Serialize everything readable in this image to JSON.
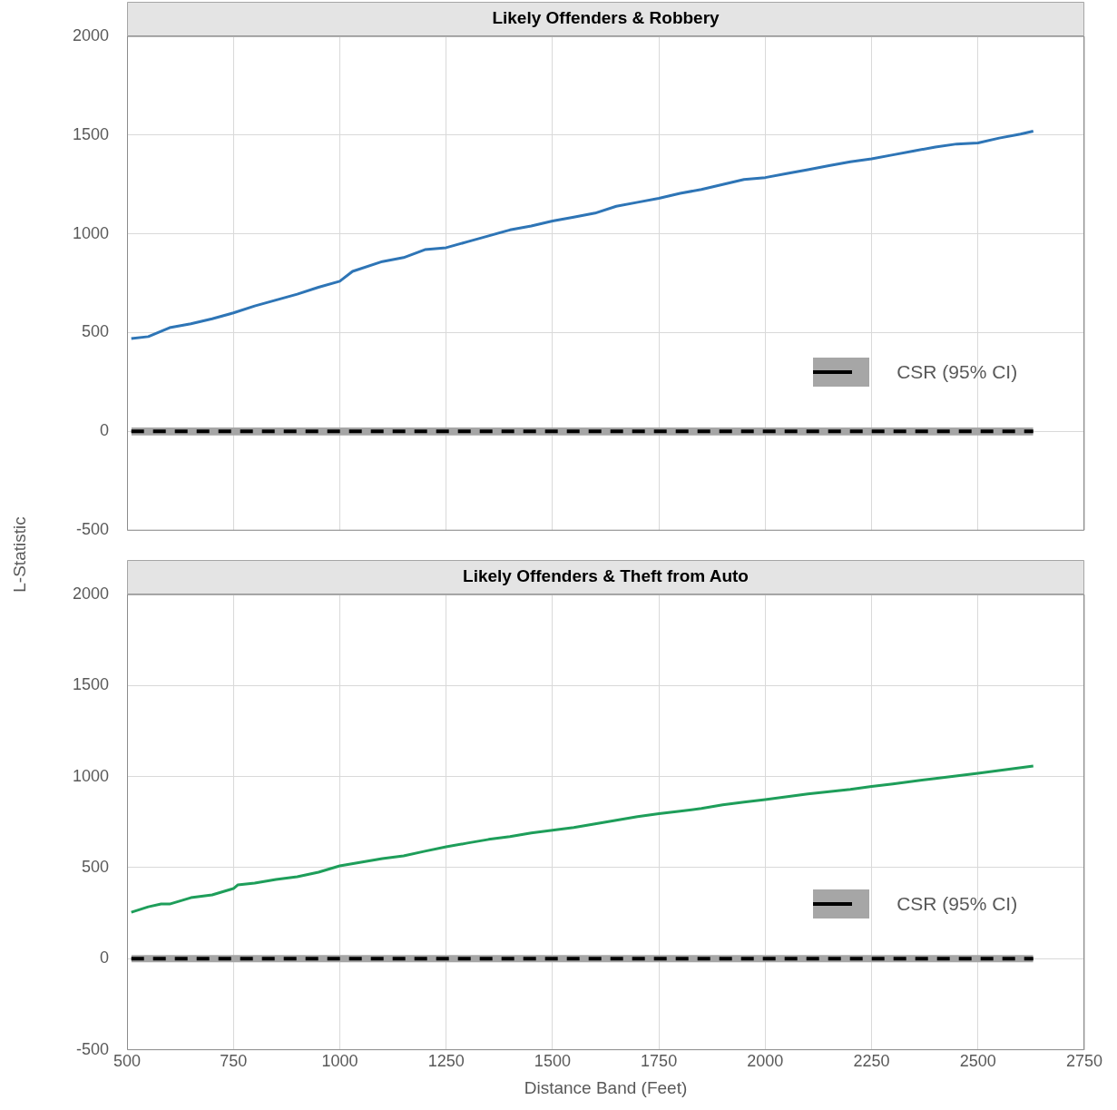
{
  "chart_data": [
    {
      "type": "line",
      "title": "Likely Offenders & Robbery",
      "ylabel": "L-Statistic",
      "x": [
        510,
        550,
        600,
        650,
        700,
        750,
        800,
        850,
        900,
        950,
        1000,
        1030,
        1100,
        1150,
        1200,
        1250,
        1300,
        1350,
        1400,
        1450,
        1500,
        1550,
        1600,
        1650,
        1700,
        1750,
        1800,
        1850,
        1900,
        1950,
        2000,
        2050,
        2100,
        2150,
        2200,
        2250,
        2300,
        2350,
        2400,
        2450,
        2500,
        2550,
        2600,
        2630
      ],
      "series": [
        {
          "color": "#2e75b6",
          "values": [
            470,
            480,
            525,
            545,
            570,
            600,
            635,
            665,
            695,
            730,
            760,
            810,
            860,
            880,
            920,
            930,
            960,
            990,
            1020,
            1040,
            1065,
            1085,
            1105,
            1140,
            1160,
            1180,
            1205,
            1225,
            1250,
            1275,
            1285,
            1305,
            1325,
            1345,
            1365,
            1380,
            1400,
            1420,
            1440,
            1455,
            1460,
            1485,
            1505,
            1520
          ]
        },
        {
          "name": "CSR (95% CI)",
          "color": "#000000",
          "line_style": "dashed",
          "values": [
            0,
            0,
            0,
            0,
            0,
            0,
            0,
            0,
            0,
            0,
            0,
            0,
            0,
            0,
            0,
            0,
            0,
            0,
            0,
            0,
            0,
            0,
            0,
            0,
            0,
            0,
            0,
            0,
            0,
            0,
            0,
            0,
            0,
            0,
            0,
            0,
            0,
            0,
            0,
            0,
            0,
            0,
            0,
            0
          ],
          "lower": [
            -20,
            -20,
            -20,
            -20,
            -20,
            -20,
            -20,
            -20,
            -20,
            -20,
            -20,
            -20,
            -20,
            -20,
            -20,
            -20,
            -20,
            -20,
            -20,
            -20,
            -20,
            -20,
            -20,
            -20,
            -20,
            -20,
            -20,
            -20,
            -20,
            -20,
            -20,
            -20,
            -20,
            -20,
            -20,
            -20,
            -20,
            -20,
            -20,
            -20,
            -20,
            -20,
            -20,
            -20
          ],
          "upper": [
            20,
            20,
            20,
            20,
            20,
            20,
            20,
            20,
            20,
            20,
            20,
            20,
            20,
            20,
            20,
            20,
            20,
            20,
            20,
            20,
            20,
            20,
            20,
            20,
            20,
            20,
            20,
            20,
            20,
            20,
            20,
            20,
            20,
            20,
            20,
            20,
            20,
            20,
            20,
            20,
            20,
            20,
            20,
            20
          ]
        }
      ],
      "xlim": [
        500,
        2750
      ],
      "xticks": [
        500,
        750,
        1000,
        1250,
        1500,
        1750,
        2000,
        2250,
        2500,
        2750
      ],
      "ylim": [
        -500,
        2000
      ],
      "yticks": [
        -500,
        0,
        500,
        1000,
        1500,
        2000
      ],
      "grid": true,
      "legend": "right",
      "marker": "none",
      "tick_labels": "y"
    },
    {
      "type": "line",
      "title": "Likely Offenders & Theft from Auto",
      "xlabel": "Distance Band (Feet)",
      "x": [
        510,
        550,
        580,
        600,
        650,
        700,
        750,
        760,
        800,
        850,
        900,
        950,
        1000,
        1050,
        1100,
        1150,
        1200,
        1250,
        1300,
        1350,
        1400,
        1450,
        1500,
        1550,
        1600,
        1650,
        1700,
        1750,
        1800,
        1850,
        1900,
        1950,
        2000,
        2100,
        2200,
        2250,
        2300,
        2400,
        2500,
        2630
      ],
      "series": [
        {
          "color": "#1e9e5a",
          "values": [
            255,
            285,
            300,
            300,
            335,
            350,
            385,
            405,
            415,
            435,
            450,
            475,
            510,
            530,
            550,
            565,
            590,
            614,
            635,
            655,
            670,
            690,
            705,
            720,
            740,
            760,
            780,
            796,
            810,
            825,
            845,
            860,
            874,
            905,
            930,
            946,
            960,
            990,
            1018,
            1058
          ]
        },
        {
          "name": "CSR (95% CI)",
          "color": "#000000",
          "line_style": "dashed",
          "values": [
            0,
            0,
            0,
            0,
            0,
            0,
            0,
            0,
            0,
            0,
            0,
            0,
            0,
            0,
            0,
            0,
            0,
            0,
            0,
            0,
            0,
            0,
            0,
            0,
            0,
            0,
            0,
            0,
            0,
            0,
            0,
            0,
            0,
            0,
            0,
            0,
            0,
            0,
            0,
            0
          ],
          "lower": [
            -20,
            -20,
            -20,
            -20,
            -20,
            -20,
            -20,
            -20,
            -20,
            -20,
            -20,
            -20,
            -20,
            -20,
            -20,
            -20,
            -20,
            -20,
            -20,
            -20,
            -20,
            -20,
            -20,
            -20,
            -20,
            -20,
            -20,
            -20,
            -20,
            -20,
            -20,
            -20,
            -20,
            -20,
            -20,
            -20,
            -20,
            -20,
            -20,
            -20
          ],
          "upper": [
            20,
            20,
            20,
            20,
            20,
            20,
            20,
            20,
            20,
            20,
            20,
            20,
            20,
            20,
            20,
            20,
            20,
            20,
            20,
            20,
            20,
            20,
            20,
            20,
            20,
            20,
            20,
            20,
            20,
            20,
            20,
            20,
            20,
            20,
            20,
            20,
            20,
            20,
            20,
            20
          ]
        }
      ],
      "xlim": [
        500,
        2750
      ],
      "xticks": [
        500,
        750,
        1000,
        1250,
        1500,
        1750,
        2000,
        2250,
        2500,
        2750
      ],
      "ylim": [
        -500,
        2000
      ],
      "yticks": [
        -500,
        0,
        500,
        1000,
        1500,
        2000
      ],
      "grid": true,
      "legend": "right",
      "marker": "none"
    }
  ]
}
